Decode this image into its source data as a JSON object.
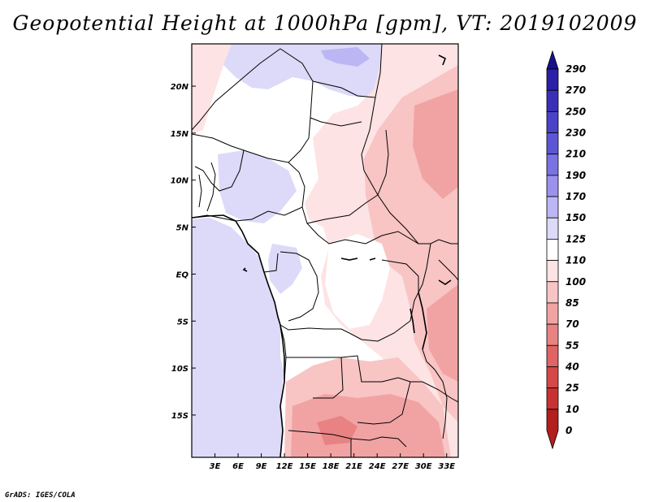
{
  "title": "Geopotential Height at 1000hPa [gpm], VT: 2019102009",
  "footer": "GrADS: IGES/COLA",
  "map": {
    "lon_range": [
      0,
      34.5
    ],
    "lat_range": [
      -19.5,
      24.5
    ],
    "x_ticks": [
      {
        "lon": 3,
        "label": "3E"
      },
      {
        "lon": 6,
        "label": "6E"
      },
      {
        "lon": 9,
        "label": "9E"
      },
      {
        "lon": 12,
        "label": "12E"
      },
      {
        "lon": 15,
        "label": "15E"
      },
      {
        "lon": 18,
        "label": "18E"
      },
      {
        "lon": 21,
        "label": "21E"
      },
      {
        "lon": 24,
        "label": "24E"
      },
      {
        "lon": 27,
        "label": "27E"
      },
      {
        "lon": 30,
        "label": "30E"
      },
      {
        "lon": 33,
        "label": "33E"
      }
    ],
    "y_ticks": [
      {
        "lat": 20,
        "label": "20N"
      },
      {
        "lat": 15,
        "label": "15N"
      },
      {
        "lat": 10,
        "label": "10N"
      },
      {
        "lat": 5,
        "label": "5N"
      },
      {
        "lat": 0,
        "label": "EQ"
      },
      {
        "lat": -5,
        "label": "5S"
      },
      {
        "lat": -10,
        "label": "10S"
      },
      {
        "lat": -15,
        "label": "15S"
      }
    ]
  },
  "colorbar": {
    "labels": [
      "290",
      "270",
      "250",
      "230",
      "210",
      "190",
      "170",
      "150",
      "125",
      "110",
      "100",
      "85",
      "70",
      "55",
      "40",
      "25",
      "10",
      "0"
    ],
    "colors": [
      "#1a0f8a",
      "#2a1fa6",
      "#3a30b8",
      "#4a42c8",
      "#5c56d6",
      "#7a72e2",
      "#9a92ec",
      "#bcb6f4",
      "#dcdaf8",
      "#ffffff",
      "#fde3e3",
      "#f8c4c4",
      "#f1a3a3",
      "#e98282",
      "#e06464",
      "#d64848",
      "#c93232",
      "#b31e1e"
    ]
  },
  "field_colors": {
    "land_white": "#ffffff",
    "light_blue": "#dcdaf8",
    "mid_blue": "#bcb6f4",
    "pale_pink": "#fde3e3",
    "light_pink": "#f8c4c4",
    "mid_pink": "#f1a3a3",
    "deep_pink": "#e98282"
  }
}
